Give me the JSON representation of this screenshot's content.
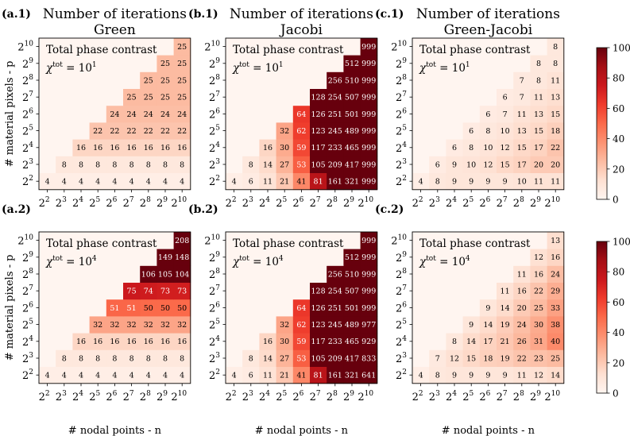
{
  "chart_data": {
    "type": "heatmap",
    "x_axis_label": "# nodal points - n",
    "y_axis_label": "# material pixels - p",
    "tick_labels": [
      "2",
      "2",
      "2",
      "2",
      "2",
      "2",
      "2",
      "2",
      "2"
    ],
    "tick_exponents": [
      "2",
      "3",
      "4",
      "5",
      "6",
      "7",
      "8",
      "9",
      "10"
    ],
    "colorbar": {
      "min": 0,
      "max": 100,
      "ticks": [
        "0",
        "20",
        "40",
        "60",
        "80",
        "100"
      ]
    },
    "annotation_line1": "Total phase contrast",
    "annotation_chi": "χ",
    "annotation_sup": "tot",
    "annotation_eq": " = 10",
    "panels": [
      {
        "tag": "(a.1)",
        "title1": "Number of iterations",
        "title2": "Green",
        "contrast_exp": "1",
        "values": [
          [
            4,
            4,
            4,
            4,
            4,
            4,
            4,
            4,
            4
          ],
          [
            null,
            8,
            8,
            8,
            8,
            8,
            8,
            8,
            8
          ],
          [
            null,
            null,
            16,
            16,
            16,
            16,
            16,
            16,
            16
          ],
          [
            null,
            null,
            null,
            22,
            22,
            22,
            22,
            22,
            22
          ],
          [
            null,
            null,
            null,
            null,
            24,
            24,
            24,
            24,
            24
          ],
          [
            null,
            null,
            null,
            null,
            null,
            25,
            25,
            25,
            25
          ],
          [
            null,
            null,
            null,
            null,
            null,
            null,
            25,
            25,
            25
          ],
          [
            null,
            null,
            null,
            null,
            null,
            null,
            null,
            25,
            25
          ],
          [
            null,
            null,
            null,
            null,
            null,
            null,
            null,
            null,
            25
          ]
        ]
      },
      {
        "tag": "(b.1)",
        "title1": "Number of iterations",
        "title2": "Jacobi",
        "contrast_exp": "1",
        "values": [
          [
            4,
            6,
            11,
            21,
            41,
            81,
            161,
            321,
            999
          ],
          [
            null,
            8,
            14,
            27,
            53,
            105,
            209,
            417,
            999
          ],
          [
            null,
            null,
            16,
            30,
            59,
            117,
            233,
            465,
            999
          ],
          [
            null,
            null,
            null,
            32,
            62,
            123,
            245,
            489,
            999
          ],
          [
            null,
            null,
            null,
            null,
            64,
            126,
            251,
            501,
            999
          ],
          [
            null,
            null,
            null,
            null,
            null,
            128,
            254,
            507,
            999
          ],
          [
            null,
            null,
            null,
            null,
            null,
            null,
            256,
            510,
            999
          ],
          [
            null,
            null,
            null,
            null,
            null,
            null,
            null,
            512,
            999
          ],
          [
            null,
            null,
            null,
            null,
            null,
            null,
            null,
            null,
            999
          ]
        ]
      },
      {
        "tag": "(c.1)",
        "title1": "Number of iterations",
        "title2": "Green-Jacobi",
        "contrast_exp": "1",
        "values": [
          [
            4,
            8,
            9,
            9,
            9,
            9,
            10,
            11,
            11
          ],
          [
            null,
            6,
            9,
            10,
            12,
            15,
            17,
            20,
            20
          ],
          [
            null,
            null,
            6,
            8,
            10,
            12,
            15,
            17,
            22
          ],
          [
            null,
            null,
            null,
            6,
            8,
            10,
            13,
            15,
            18
          ],
          [
            null,
            null,
            null,
            null,
            6,
            7,
            11,
            13,
            15
          ],
          [
            null,
            null,
            null,
            null,
            null,
            6,
            7,
            11,
            13
          ],
          [
            null,
            null,
            null,
            null,
            null,
            null,
            7,
            8,
            11
          ],
          [
            null,
            null,
            null,
            null,
            null,
            null,
            null,
            8,
            8
          ],
          [
            null,
            null,
            null,
            null,
            null,
            null,
            null,
            null,
            8
          ]
        ]
      },
      {
        "tag": "(a.2)",
        "title1": "",
        "title2": "",
        "contrast_exp": "4",
        "values": [
          [
            4,
            4,
            4,
            4,
            4,
            4,
            4,
            4,
            4
          ],
          [
            null,
            8,
            8,
            8,
            8,
            8,
            8,
            8,
            8
          ],
          [
            null,
            null,
            16,
            16,
            16,
            16,
            16,
            16,
            16
          ],
          [
            null,
            null,
            null,
            32,
            32,
            32,
            32,
            32,
            32
          ],
          [
            null,
            null,
            null,
            null,
            51,
            51,
            50,
            50,
            50
          ],
          [
            null,
            null,
            null,
            null,
            null,
            75,
            74,
            73,
            73
          ],
          [
            null,
            null,
            null,
            null,
            null,
            null,
            106,
            105,
            104
          ],
          [
            null,
            null,
            null,
            null,
            null,
            null,
            null,
            149,
            148
          ],
          [
            null,
            null,
            null,
            null,
            null,
            null,
            null,
            null,
            208
          ]
        ]
      },
      {
        "tag": "(b.2)",
        "title1": "",
        "title2": "",
        "contrast_exp": "4",
        "values": [
          [
            4,
            6,
            11,
            21,
            41,
            81,
            161,
            321,
            641
          ],
          [
            null,
            8,
            14,
            27,
            53,
            105,
            209,
            417,
            833
          ],
          [
            null,
            null,
            16,
            30,
            59,
            117,
            233,
            465,
            929
          ],
          [
            null,
            null,
            null,
            32,
            62,
            123,
            245,
            489,
            977
          ],
          [
            null,
            null,
            null,
            null,
            64,
            126,
            251,
            501,
            999
          ],
          [
            null,
            null,
            null,
            null,
            null,
            128,
            254,
            507,
            999
          ],
          [
            null,
            null,
            null,
            null,
            null,
            null,
            256,
            510,
            999
          ],
          [
            null,
            null,
            null,
            null,
            null,
            null,
            null,
            512,
            999
          ],
          [
            null,
            null,
            null,
            null,
            null,
            null,
            null,
            null,
            999
          ]
        ]
      },
      {
        "tag": "(c.2)",
        "title1": "",
        "title2": "",
        "contrast_exp": "4",
        "values": [
          [
            4,
            8,
            9,
            9,
            9,
            9,
            11,
            12,
            14
          ],
          [
            null,
            7,
            12,
            15,
            18,
            19,
            22,
            23,
            25
          ],
          [
            null,
            null,
            8,
            14,
            17,
            21,
            26,
            31,
            40
          ],
          [
            null,
            null,
            null,
            9,
            14,
            19,
            24,
            30,
            38
          ],
          [
            null,
            null,
            null,
            null,
            9,
            14,
            20,
            25,
            33
          ],
          [
            null,
            null,
            null,
            null,
            null,
            11,
            16,
            22,
            29
          ],
          [
            null,
            null,
            null,
            null,
            null,
            null,
            11,
            16,
            24
          ],
          [
            null,
            null,
            null,
            null,
            null,
            null,
            null,
            12,
            16
          ],
          [
            null,
            null,
            null,
            null,
            null,
            null,
            null,
            null,
            13
          ]
        ]
      }
    ]
  }
}
